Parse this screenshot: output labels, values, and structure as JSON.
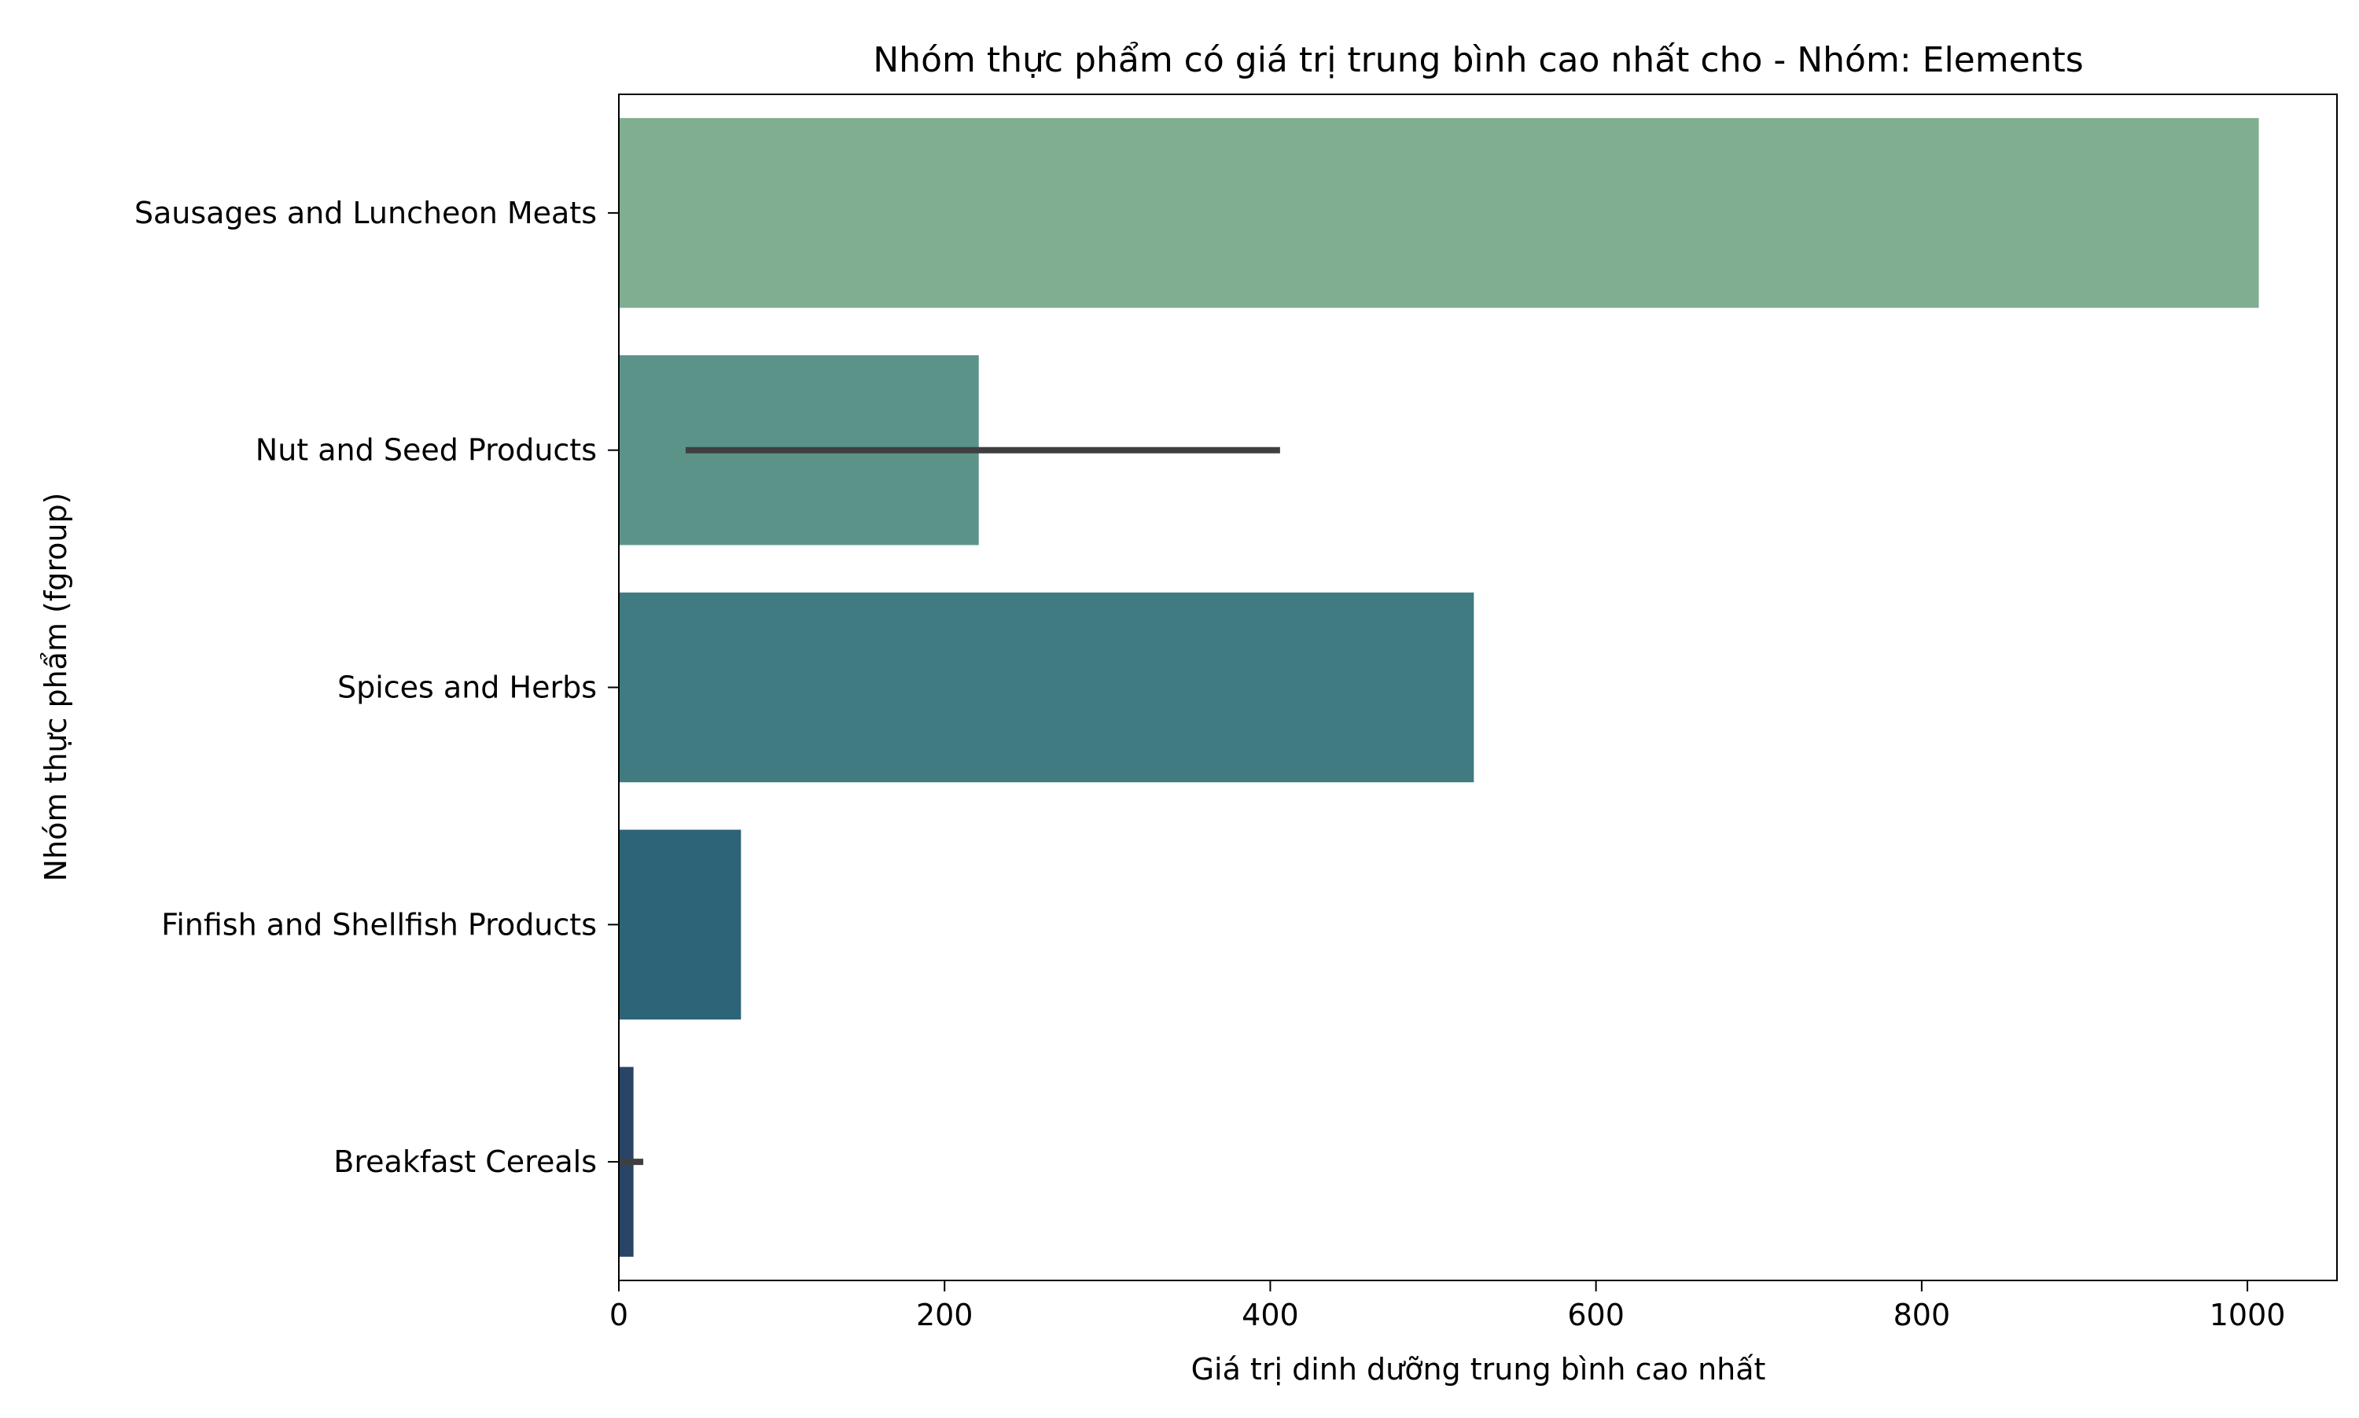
{
  "chart_data": {
    "type": "bar",
    "orientation": "horizontal",
    "title": "Nhóm thực phẩm có giá trị trung bình cao nhất cho - Nhóm: Elements",
    "xlabel": "Giá trị dinh dưỡng trung bình cao nhất",
    "ylabel": "Nhóm thực phẩm (fgroup)",
    "categories": [
      "Sausages and Luncheon Meats",
      "Nut and Seed Products",
      "Spices and Herbs",
      "Finfish and Shellfish Products",
      "Breakfast Cereals"
    ],
    "values": [
      1007,
      221,
      525,
      75,
      9
    ],
    "error_bars": [
      null,
      [
        41,
        406
      ],
      null,
      null,
      [
        1,
        15
      ]
    ],
    "xlim": [
      0,
      1055
    ],
    "xticks": [
      "0",
      "200",
      "400",
      "600",
      "800",
      "1000"
    ],
    "grid": false,
    "legend": "none",
    "colors": [
      "#7fae91",
      "#5c9389",
      "#3f7b80",
      "#2d6478",
      "#2a4468"
    ],
    "error_bar_color": "#3f3f3f"
  }
}
